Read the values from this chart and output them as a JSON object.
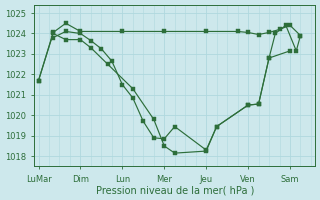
{
  "xlabel": "Pression niveau de la mer( hPa )",
  "background_color": "#cde8ec",
  "grid_color": "#b0d8de",
  "line_color": "#2d6e3a",
  "ylim": [
    1017.5,
    1025.4
  ],
  "yticks": [
    1018,
    1019,
    1020,
    1021,
    1022,
    1023,
    1024,
    1025
  ],
  "xtick_labels": [
    "LuMar",
    "Dim",
    "Lun",
    "Mer",
    "Jeu",
    "Ven",
    "Sam"
  ],
  "xtick_positions": [
    0,
    2,
    4,
    6,
    8,
    10,
    12
  ],
  "xlim": [
    -0.2,
    13.2
  ],
  "series": [
    {
      "x": [
        0,
        0.7,
        1.3,
        2.0,
        4.0,
        6.0,
        8.0,
        9.5,
        10.0,
        10.5,
        11.0,
        11.5,
        12.0,
        12.5
      ],
      "y": [
        1021.7,
        1024.05,
        1024.5,
        1024.1,
        1024.1,
        1024.1,
        1024.1,
        1024.1,
        1024.05,
        1023.95,
        1024.05,
        1024.2,
        1024.4,
        1023.9
      ]
    },
    {
      "x": [
        0.7,
        1.3,
        2.0,
        2.5,
        3.0,
        3.5,
        4.0,
        4.5,
        5.0,
        5.5,
        6.0,
        6.5,
        8.0,
        8.5,
        10.0,
        10.5,
        11.0,
        12.0
      ],
      "y": [
        1023.8,
        1024.1,
        1024.0,
        1023.65,
        1023.25,
        1022.65,
        1021.5,
        1020.85,
        1019.7,
        1018.9,
        1018.85,
        1019.45,
        1018.3,
        1019.45,
        1020.5,
        1020.55,
        1022.8,
        1023.15
      ]
    },
    {
      "x": [
        0.0,
        0.7,
        1.3,
        2.0,
        2.5,
        3.3,
        4.5,
        5.5,
        6.0,
        6.5,
        8.0,
        8.5,
        10.0,
        10.5,
        11.0,
        11.3,
        11.8,
        12.3,
        12.5
      ],
      "y": [
        1021.7,
        1024.0,
        1023.7,
        1023.7,
        1023.3,
        1022.5,
        1021.3,
        1019.8,
        1018.5,
        1018.15,
        1018.25,
        1019.45,
        1020.5,
        1020.55,
        1022.8,
        1024.0,
        1024.4,
        1023.15,
        1023.9
      ]
    }
  ]
}
